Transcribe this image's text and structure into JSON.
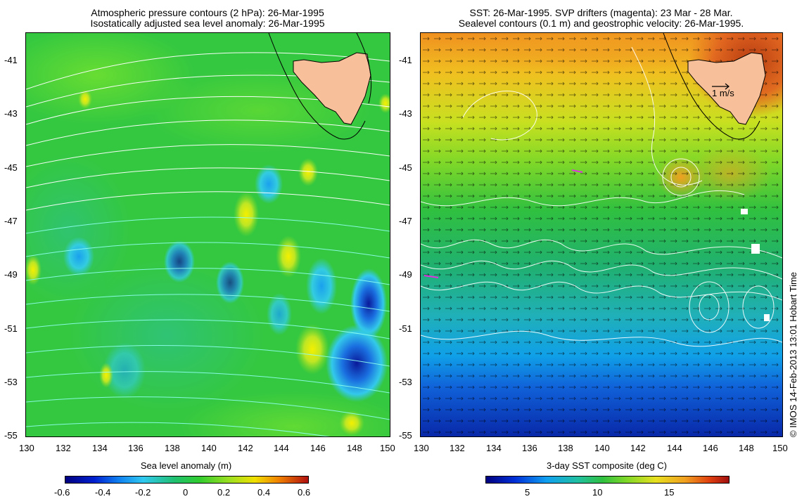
{
  "left_panel": {
    "title_line1": "Atmospheric pressure contours (2 hPa): 26-Mar-1995",
    "title_line2": "Isostatically adjusted sea level anomaly: 26-Mar-1995",
    "y_ticks": [
      "-41",
      "-43",
      "-45",
      "-47",
      "-49",
      "-51",
      "-53",
      "-55"
    ],
    "x_ticks": [
      "130",
      "132",
      "134",
      "136",
      "138",
      "140",
      "142",
      "144",
      "146",
      "148",
      "150"
    ],
    "colorbar": {
      "label": "Sea level anomaly (m)",
      "ticks": [
        "-0.6",
        "-0.4",
        "-0.2",
        "0",
        "0.2",
        "0.4",
        "0.6"
      ]
    }
  },
  "right_panel": {
    "title_line1": "SST: 26-Mar-1995. SVP drifters (magenta): 23 Mar - 28 Mar.",
    "title_line2": "Sealevel contours (0.1 m) and geostrophic velocity: 26-Mar-1995.",
    "y_ticks": [
      "-41",
      "-43",
      "-45",
      "-47",
      "-49",
      "-51",
      "-53",
      "-55"
    ],
    "x_ticks": [
      "130",
      "132",
      "134",
      "136",
      "138",
      "140",
      "142",
      "144",
      "146",
      "148",
      "150"
    ],
    "scale_label": "1 m/s",
    "colorbar": {
      "label": "3-day SST composite (deg C)",
      "ticks": [
        "5",
        "10",
        "15"
      ]
    }
  },
  "copyright": "© IMOS 14-Feb-2013 13:01 Hobart Time",
  "colors": {
    "land": "#f8c09a",
    "contour": "#ffffff",
    "cyan_contour": "#7fffff",
    "map_background": "#22cc33"
  }
}
